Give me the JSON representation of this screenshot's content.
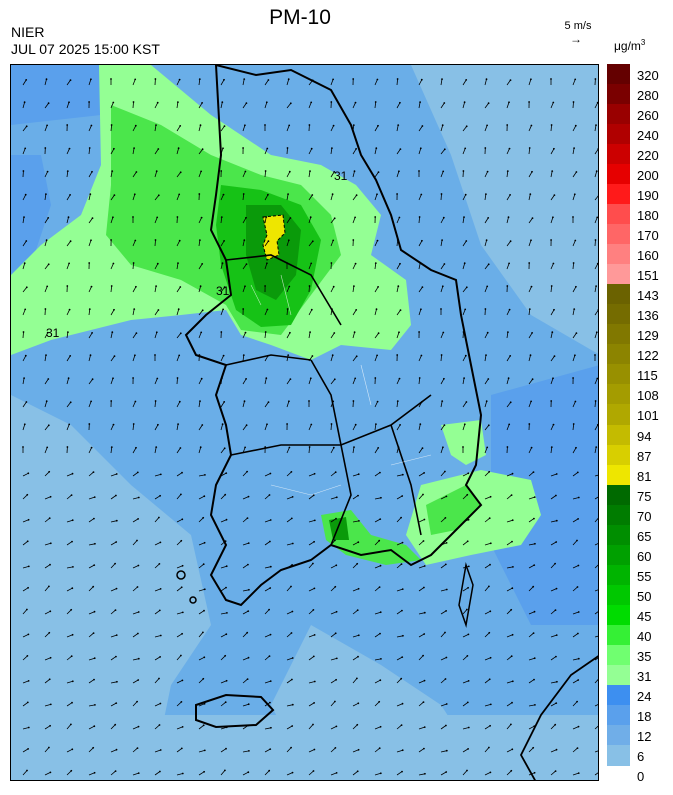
{
  "header": {
    "title": "PM-10",
    "agency": "NIER",
    "datetime": "JUL 07 2025 15:00 KST",
    "wind_reference": "5 m/s",
    "wind_reference_arrow": "→",
    "unit": "μg/m",
    "unit_exp": "3"
  },
  "map": {
    "contour_labels": [
      "31",
      "31",
      "31"
    ],
    "regions": "Korean peninsula (South Korea) with Jeju island",
    "wind_arrow_icon": "wind-arrow-icon"
  },
  "legend": {
    "labels": [
      "320",
      "280",
      "260",
      "240",
      "220",
      "200",
      "190",
      "180",
      "170",
      "160",
      "151",
      "143",
      "136",
      "129",
      "122",
      "115",
      "108",
      "101",
      "94",
      "87",
      "81",
      "75",
      "70",
      "65",
      "60",
      "55",
      "50",
      "45",
      "40",
      "35",
      "31",
      "24",
      "18",
      "12",
      "6",
      "0"
    ],
    "colors": [
      "#640000",
      "#7a0000",
      "#990000",
      "#b00000",
      "#cc0000",
      "#e60000",
      "#ff1a1a",
      "#ff4d4d",
      "#ff6666",
      "#ff8080",
      "#ff9999",
      "#6b6200",
      "#756c00",
      "#817800",
      "#8c8400",
      "#989000",
      "#a49c00",
      "#b0a800",
      "#c4bb00",
      "#d8cf00",
      "#eee600",
      "#006a00",
      "#007c00",
      "#008e00",
      "#00a000",
      "#00b400",
      "#00c800",
      "#00dc00",
      "#35f035",
      "#70ff70",
      "#94ff94",
      "#3d8ff0",
      "#5aa0ec",
      "#70aee8",
      "#88c0e6"
    ]
  },
  "colors": {
    "sea_low": "#88c0e6",
    "sea_mid": "#6aaee8",
    "blue_24": "#5aa0ec",
    "green_31": "#94ff94",
    "green_40": "#4be64b",
    "green_55": "#16c216",
    "green_70": "#0a9a0a",
    "yellow_87": "#eee600"
  }
}
